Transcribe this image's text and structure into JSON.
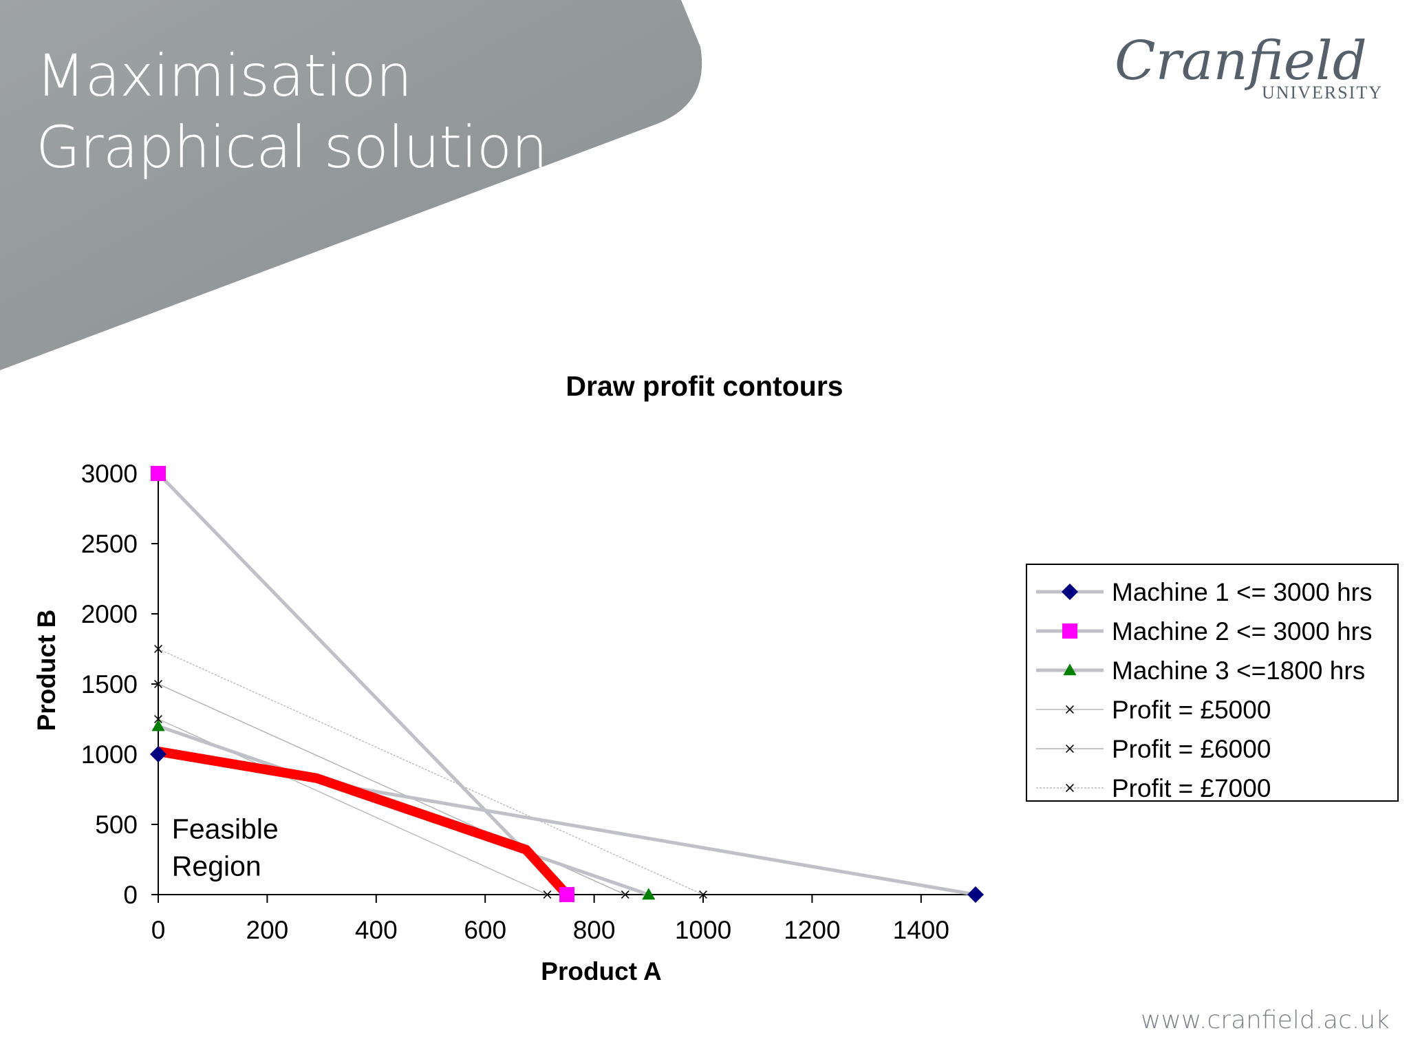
{
  "slide": {
    "title_line_1": "Maximisation",
    "title_line_2": "Graphical solution",
    "logo_word": "Cranfield",
    "logo_sub": "UNIVERSITY",
    "footer_url": "www.cranfield.ac.uk",
    "header_color": "#8f9597"
  },
  "chart_data": {
    "type": "line",
    "title": "Draw profit contours",
    "xlabel": "Product A",
    "ylabel": "Product B",
    "xlim": [
      0,
      1500
    ],
    "ylim": [
      0,
      3000
    ],
    "xticks": [
      0,
      200,
      400,
      600,
      800,
      1000,
      1200,
      1400
    ],
    "yticks": [
      0,
      500,
      1000,
      1500,
      2000,
      2500,
      3000
    ],
    "grid": false,
    "legend_position": "right",
    "series": [
      {
        "name": "Machine 1 <= 3000 hrs",
        "x": [
          0,
          1500
        ],
        "y": [
          1000,
          0
        ],
        "line_color": "#c0c0c8",
        "marker": "diamond",
        "marker_color": "#000080"
      },
      {
        "name": "Machine 2 <= 3000 hrs",
        "x": [
          0,
          750
        ],
        "y": [
          3000,
          0
        ],
        "line_color": "#c0c0c8",
        "marker": "square",
        "marker_color": "#ff00ff"
      },
      {
        "name": "Machine 3 <=1800 hrs",
        "x": [
          0,
          900
        ],
        "y": [
          1200,
          0
        ],
        "line_color": "#c0c0c8",
        "marker": "triangle",
        "marker_color": "#008000"
      },
      {
        "name": "Profit = £5000",
        "x": [
          0,
          714
        ],
        "y": [
          1250,
          0
        ],
        "line_color": "#b8b8b8",
        "marker": "x",
        "marker_color": "#000000"
      },
      {
        "name": "Profit = £6000",
        "x": [
          0,
          857
        ],
        "y": [
          1500,
          0
        ],
        "line_color": "#b0b0b0",
        "marker": "x",
        "marker_color": "#000000"
      },
      {
        "name": "Profit = £7000",
        "x": [
          0,
          1000
        ],
        "y": [
          1750,
          0
        ],
        "line_color": "#b8b8b8",
        "marker": "x",
        "marker_color": "#000000"
      }
    ],
    "feasible_boundary": {
      "x": [
        0,
        290,
        675,
        750
      ],
      "y": [
        1020,
        830,
        320,
        0
      ],
      "color": "#ff0000"
    },
    "annotations": [
      {
        "text_line_1": "Feasible",
        "text_line_2": "Region",
        "x": 25,
        "y": 400
      }
    ]
  }
}
